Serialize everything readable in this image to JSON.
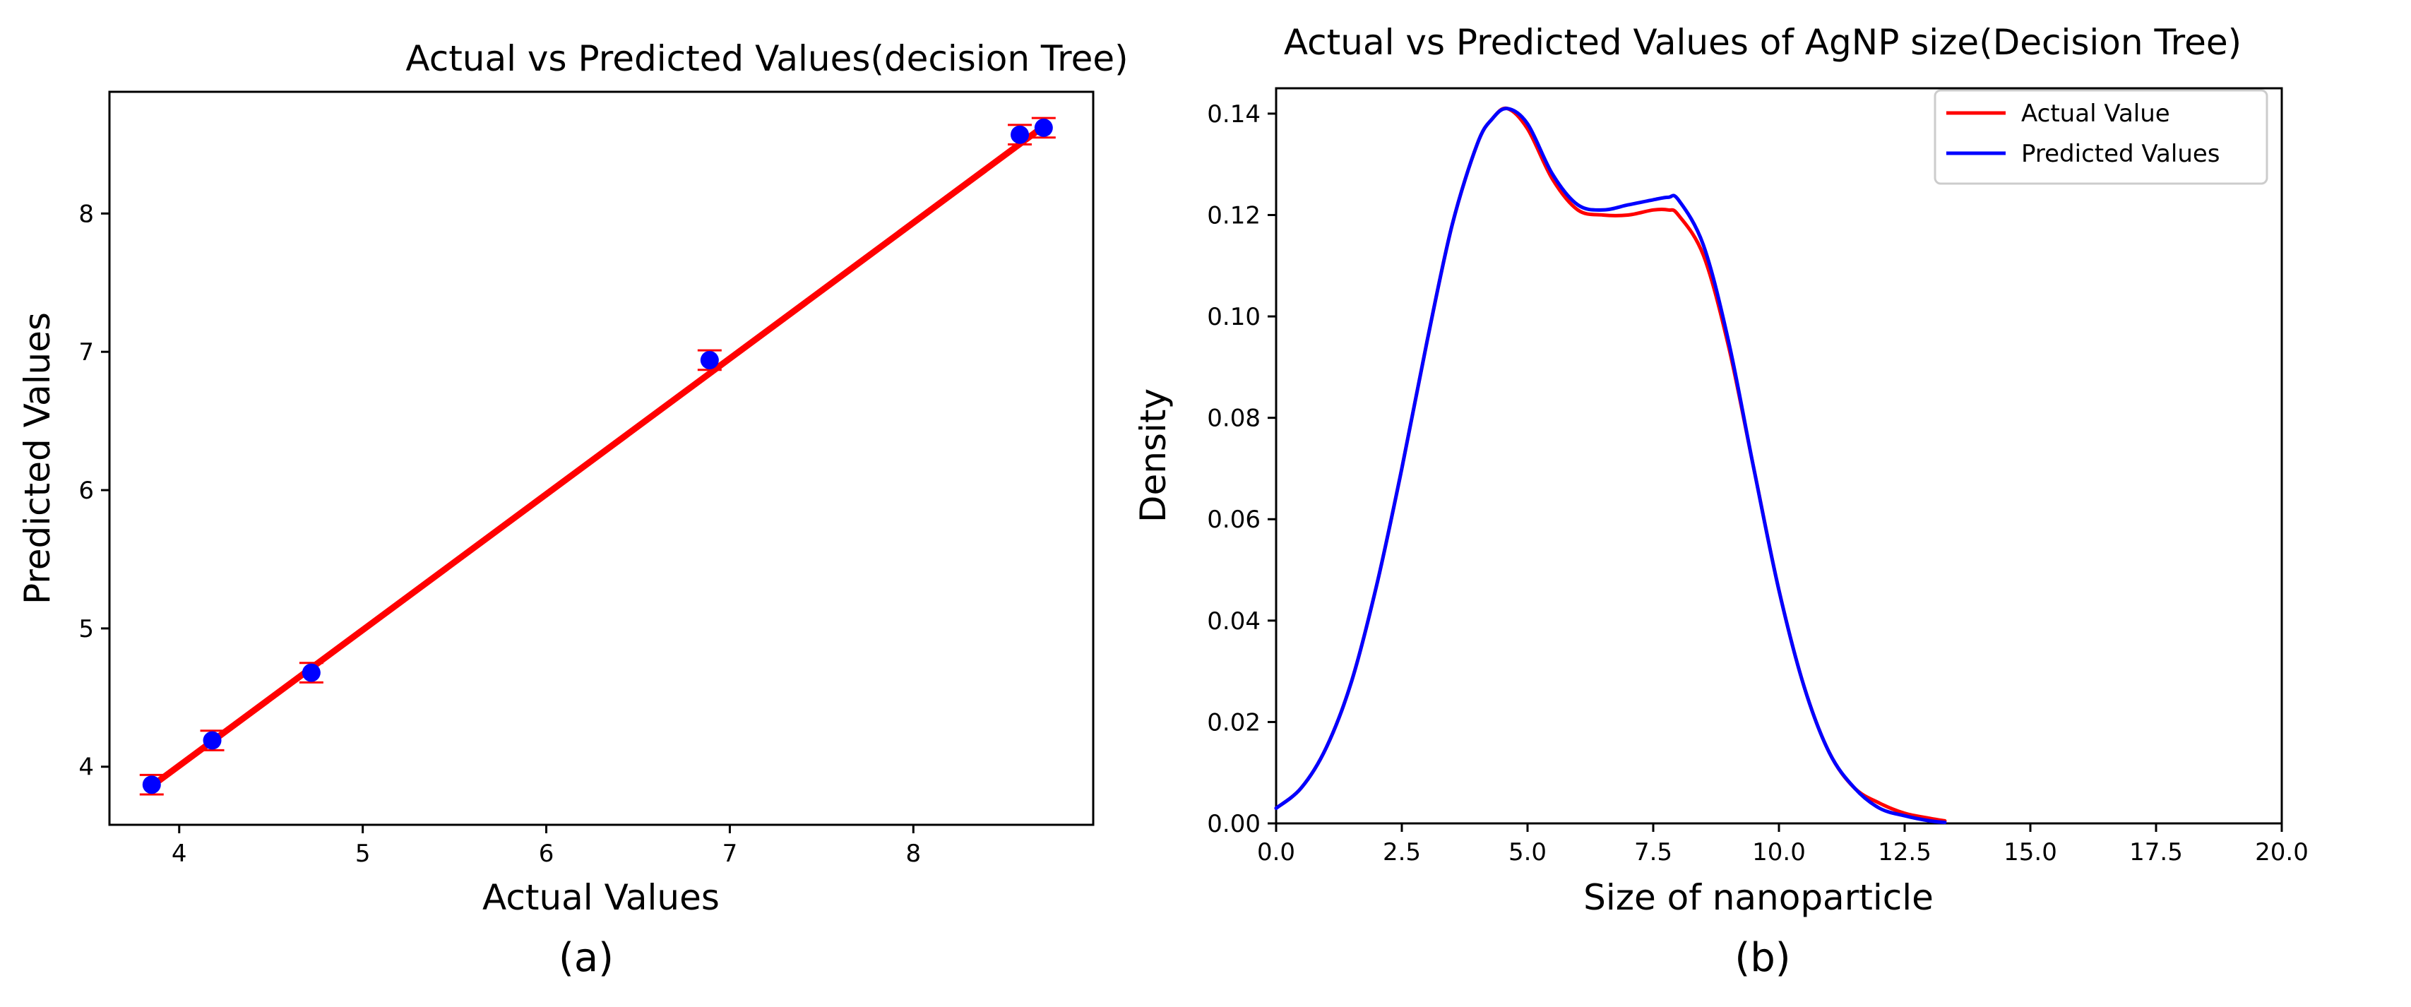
{
  "chart_data": [
    {
      "id": "a",
      "type": "scatter",
      "title": "Actual vs Predicted Values(decision Tree)",
      "xlabel": "Actual Values",
      "ylabel": "Predicted Values",
      "caption": "(a)",
      "xlim": [
        3.62,
        8.98
      ],
      "ylim": [
        3.58,
        8.88
      ],
      "xticks": [
        4,
        5,
        6,
        7,
        8
      ],
      "yticks": [
        4,
        5,
        6,
        7,
        8
      ],
      "grid": false,
      "points": [
        {
          "x": 3.85,
          "y": 3.87
        },
        {
          "x": 4.18,
          "y": 4.19
        },
        {
          "x": 4.72,
          "y": 4.68
        },
        {
          "x": 6.89,
          "y": 6.94
        },
        {
          "x": 8.58,
          "y": 8.57
        },
        {
          "x": 8.71,
          "y": 8.62
        }
      ],
      "error_bar": 0.04,
      "fit_line": {
        "x": [
          3.85,
          8.72
        ],
        "y": [
          3.86,
          8.64
        ]
      },
      "colors": {
        "points": "#0000ff",
        "line": "#ff0000"
      }
    },
    {
      "id": "b",
      "type": "line",
      "title": "Actual vs Predicted Values of AgNP size(Decision Tree)",
      "xlabel": "Size of nanoparticle",
      "ylabel": "Density",
      "caption": "(b)",
      "xlim": [
        0,
        20
      ],
      "ylim": [
        0,
        0.145
      ],
      "xticks": [
        0,
        2.5,
        5,
        7.5,
        10,
        12.5,
        15,
        17.5,
        20
      ],
      "xtick_labels": [
        "0.0",
        "2.5",
        "5.0",
        "7.5",
        "10.0",
        "12.5",
        "15.0",
        "17.5",
        "20.0"
      ],
      "yticks": [
        0,
        0.02,
        0.04,
        0.06,
        0.08,
        0.1,
        0.12,
        0.14
      ],
      "ytick_labels": [
        "0.00",
        "0.02",
        "0.04",
        "0.06",
        "0.08",
        "0.10",
        "0.12",
        "0.14"
      ],
      "legend_position": "top-right",
      "grid": false,
      "series": [
        {
          "name": "Actual Value",
          "color": "#ff0000",
          "x": [
            0,
            0.5,
            1,
            1.5,
            2,
            2.5,
            3,
            3.5,
            4,
            4.3,
            4.6,
            5,
            5.5,
            6,
            6.5,
            7,
            7.5,
            7.8,
            8,
            8.5,
            9,
            9.5,
            10,
            10.5,
            11,
            11.5,
            12,
            12.5,
            13,
            13.3
          ],
          "y": [
            0.003,
            0.007,
            0.015,
            0.028,
            0.047,
            0.07,
            0.095,
            0.118,
            0.134,
            0.139,
            0.141,
            0.137,
            0.127,
            0.121,
            0.12,
            0.12,
            0.121,
            0.121,
            0.12,
            0.112,
            0.094,
            0.07,
            0.046,
            0.027,
            0.014,
            0.007,
            0.004,
            0.002,
            0.001,
            0.0005
          ]
        },
        {
          "name": "Predicted Values",
          "color": "#0000ff",
          "x": [
            0,
            0.5,
            1,
            1.5,
            2,
            2.5,
            3,
            3.5,
            4,
            4.3,
            4.6,
            5,
            5.5,
            6,
            6.5,
            7,
            7.5,
            7.8,
            8,
            8.5,
            9,
            9.5,
            10,
            10.5,
            11,
            11.5,
            12,
            12.5,
            13,
            13.3
          ],
          "y": [
            0.003,
            0.007,
            0.015,
            0.028,
            0.047,
            0.07,
            0.095,
            0.118,
            0.134,
            0.139,
            0.141,
            0.138,
            0.128,
            0.122,
            0.121,
            0.122,
            0.123,
            0.1235,
            0.123,
            0.114,
            0.095,
            0.07,
            0.046,
            0.027,
            0.014,
            0.007,
            0.003,
            0.0015,
            0.0005,
            0.0002
          ]
        }
      ]
    }
  ]
}
